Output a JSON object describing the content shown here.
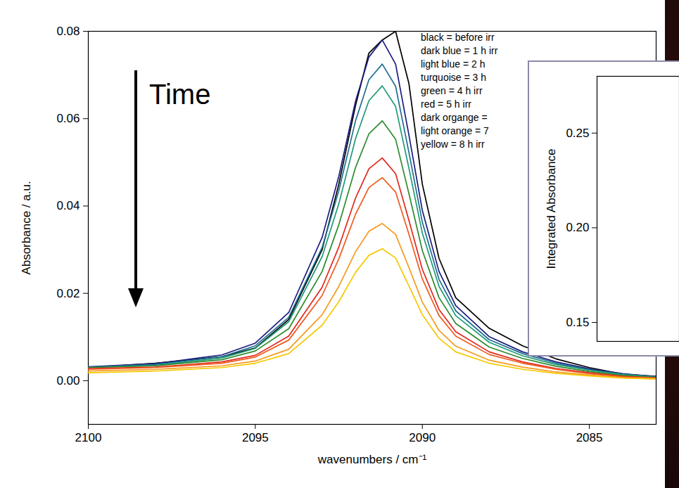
{
  "chart_data": [
    {
      "type": "line",
      "xlabel": "wavenumbers / cm⁻¹",
      "ylabel": "Absorbance / a.u.",
      "annotations": [
        "Time"
      ],
      "legend": "top-right",
      "xlim": [
        2100,
        2083
      ],
      "xticks": [
        2100,
        2095,
        2090,
        2085
      ],
      "ylim": [
        -0.01,
        0.08
      ],
      "yticks": [
        {
          "value": 0,
          "label": "0.00"
        },
        {
          "value": 0.02,
          "label": "0.02"
        },
        {
          "value": 0.04,
          "label": "0.04"
        },
        {
          "value": 0.06,
          "label": "0.06"
        },
        {
          "value": 0.08,
          "label": "0.08"
        }
      ],
      "x": [
        2100,
        2098,
        2096,
        2095,
        2094,
        2093,
        2092.5,
        2092,
        2091.6,
        2091.2,
        2090.8,
        2090.4,
        2090,
        2089.5,
        2089,
        2088,
        2087,
        2086,
        2085,
        2084,
        2083
      ],
      "series": [
        {
          "name": "black = before irr",
          "color": "#000000",
          "values": [
            0.003,
            0.004,
            0.0055,
            0.0075,
            0.014,
            0.03,
            0.045,
            0.063,
            0.075,
            0.078,
            0.08,
            0.068,
            0.045,
            0.028,
            0.019,
            0.012,
            0.008,
            0.005,
            0.003,
            0.0015,
            0.001
          ]
        },
        {
          "name": "dark blue = 1 h irr",
          "color": "#1c1c80",
          "values": [
            0.0032,
            0.0039,
            0.0059,
            0.0086,
            0.0156,
            0.0328,
            0.0468,
            0.064,
            0.0741,
            0.078,
            0.0725,
            0.0562,
            0.039,
            0.025,
            0.0172,
            0.0101,
            0.0066,
            0.0043,
            0.0027,
            0.0016,
            0.0009
          ]
        },
        {
          "name": "light blue = 2 h",
          "color": "#1f6f8f",
          "values": [
            0.0031,
            0.0037,
            0.0055,
            0.008,
            0.0145,
            0.0305,
            0.0435,
            0.0595,
            0.0689,
            0.0725,
            0.0674,
            0.0522,
            0.0363,
            0.0232,
            0.016,
            0.0094,
            0.0062,
            0.004,
            0.0025,
            0.0015,
            0.0009
          ]
        },
        {
          "name": "turquoise = 3 h",
          "color": "#1f9a78",
          "values": [
            0.003,
            0.0035,
            0.0052,
            0.0074,
            0.0135,
            0.0284,
            0.0405,
            0.0554,
            0.0641,
            0.0675,
            0.0628,
            0.0486,
            0.0338,
            0.0216,
            0.0149,
            0.0088,
            0.0057,
            0.0037,
            0.0024,
            0.0014,
            0.0008
          ]
        },
        {
          "name": "green = 4 h irr",
          "color": "#2e8b2e",
          "values": [
            0.003,
            0.0034,
            0.0048,
            0.0068,
            0.0119,
            0.025,
            0.0357,
            0.0488,
            0.0565,
            0.0595,
            0.0553,
            0.0428,
            0.0298,
            0.019,
            0.0131,
            0.0077,
            0.0051,
            0.0033,
            0.0021,
            0.0012,
            0.0007
          ]
        },
        {
          "name": "red = 5 h irr",
          "color": "#e0281e",
          "values": [
            0.0028,
            0.0031,
            0.0043,
            0.0058,
            0.0102,
            0.0214,
            0.0306,
            0.0418,
            0.0485,
            0.051,
            0.0474,
            0.0367,
            0.0255,
            0.0163,
            0.0112,
            0.0066,
            0.0043,
            0.0028,
            0.0018,
            0.001,
            0.0006
          ]
        },
        {
          "name": "dark organge =",
          "color": "#f05a1e",
          "values": [
            0.0026,
            0.003,
            0.004,
            0.0054,
            0.0093,
            0.0195,
            0.0279,
            0.0381,
            0.0442,
            0.0465,
            0.0432,
            0.0335,
            0.0233,
            0.0149,
            0.0102,
            0.006,
            0.004,
            0.0026,
            0.0016,
            0.0009,
            0.0006
          ]
        },
        {
          "name": "light orange = 7",
          "color": "#f59a1e",
          "values": [
            0.0022,
            0.0026,
            0.0034,
            0.0045,
            0.0072,
            0.0151,
            0.0216,
            0.0295,
            0.0342,
            0.036,
            0.0335,
            0.0259,
            0.018,
            0.0115,
            0.0079,
            0.0047,
            0.0031,
            0.002,
            0.0013,
            0.0007,
            0.0004
          ]
        },
        {
          "name": "yellow = 8 h irr",
          "color": "#f5c800",
          "values": [
            0.0018,
            0.0022,
            0.003,
            0.004,
            0.0062,
            0.0127,
            0.0181,
            0.0248,
            0.0287,
            0.0302,
            0.0281,
            0.0217,
            0.0151,
            0.0097,
            0.0066,
            0.004,
            0.0026,
            0.0017,
            0.0011,
            0.0006,
            0.0004
          ]
        }
      ]
    },
    {
      "type": "line",
      "ylabel": "Integrated Absorbance",
      "tick_labels": "y",
      "ylim": [
        0.14,
        0.28
      ],
      "yticks": [
        {
          "value": 0.15,
          "label": "0.15"
        },
        {
          "value": 0.2,
          "label": "0.20"
        },
        {
          "value": 0.25,
          "label": "0.25"
        }
      ],
      "series": []
    }
  ]
}
